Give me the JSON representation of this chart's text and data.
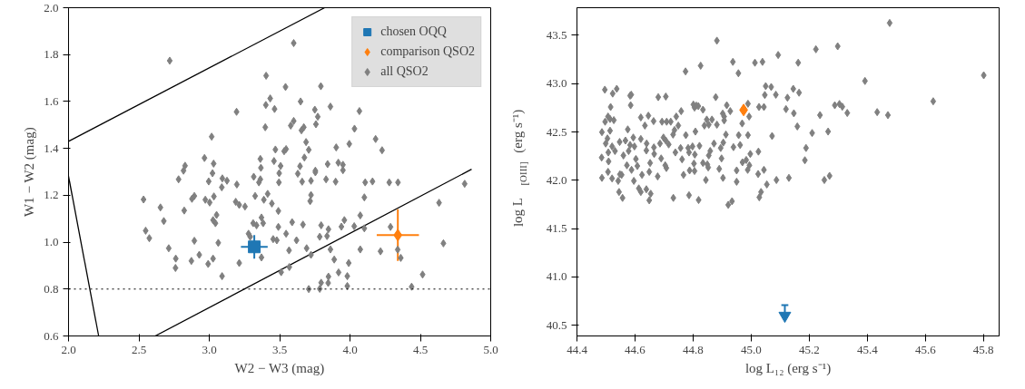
{
  "chart_data": [
    {
      "type": "scatter",
      "xlabel": "W2 − W3 (mag)",
      "ylabel": "W1 − W2 (mag)",
      "xlim": [
        2.0,
        5.0
      ],
      "ylim": [
        0.6,
        2.0
      ],
      "xticks": [
        {
          "value": 2,
          "label": "2.0"
        },
        2.5,
        {
          "value": 3,
          "label": "3.0"
        },
        3.5,
        {
          "value": 4,
          "label": "4.0"
        },
        4.5,
        {
          "value": 5,
          "label": "5.0"
        }
      ],
      "yticks": [
        0.6,
        0.8,
        {
          "value": 1,
          "label": "1.0"
        },
        1.2,
        1.4,
        1.6,
        1.8,
        {
          "value": 2,
          "label": "2.0"
        }
      ],
      "grid": false,
      "legend": "top right",
      "ref_lines": [
        {
          "axis": "y",
          "value": 0.8,
          "color": "#000000",
          "line_style": "dotted"
        }
      ],
      "series": [
        {
          "type": "line",
          "color": "#000000",
          "x": [
            2.0,
            3.82
          ],
          "values": [
            1.43,
            2.0
          ]
        },
        {
          "type": "line",
          "color": "#000000",
          "x": [
            2.616,
            4.864
          ],
          "values": [
            0.6,
            1.311
          ]
        },
        {
          "type": "line",
          "color": "#000000",
          "x": [
            2.0,
            2.214
          ],
          "values": [
            1.281,
            0.6
          ]
        },
        {
          "name": "chosen OQQ",
          "color": "#1f77b4",
          "marker": "square",
          "x": [
            3.32
          ],
          "values": [
            0.98
          ],
          "errors": [
            0.05
          ],
          "xerrors": [
            0.095
          ]
        },
        {
          "name": "comparison QSO2",
          "color": "#ff7f0e",
          "marker": "diamond",
          "x": [
            4.34
          ],
          "values": [
            1.03
          ],
          "errors": [
            0.11
          ],
          "xerrors": [
            0.15
          ]
        },
        {
          "name": "all QSO2",
          "color": "#808080",
          "marker": "diamond",
          "x": [
            2.719,
            3.6,
            3.404,
            3.542,
            3.793,
            3.433,
            3.402,
            3.464,
            3.649,
            3.75,
            3.861,
            4.067,
            3.194,
            3.771,
            3.6,
            3.579,
            3.758,
            3.398,
            3.655,
            3.672,
            4.032,
            3.017,
            4.182,
            3.688,
            3.995,
            3.902,
            4.228,
            3.47,
            3.532,
            3.546,
            3.707,
            2.966,
            3.363,
            3.676,
            2.828,
            3.031,
            3.46,
            3.507,
            3.841,
            3.917,
            3.95,
            2.817,
            3.367,
            3.645,
            3.754,
            3.023,
            3.497,
            3.95,
            2.782,
            3.093,
            3.316,
            3.629,
            3.754,
            2.996,
            3.126,
            3.196,
            3.363,
            3.353,
            3.495,
            3.66,
            3.723,
            3.83,
            3.898,
            4.108,
            4.16,
            4.279,
            4.341,
            4.815,
            3.089,
            2.533,
            2.653,
            2.894,
            2.877,
            2.972,
            3.003,
            3.033,
            3.326,
            3.415,
            3.388,
            3.188,
            3.213,
            3.254,
            3.445,
            3.723,
            3.717,
            4.102,
            4.633,
            2.822,
            3.491,
            3.052,
            2.677,
            3.027,
            3.044,
            3.371,
            3.312,
            3.336,
            3.383,
            3.589,
            3.666,
            3.96,
            4.073,
            2.548,
            2.574,
            3.491,
            4.03,
            4.102,
            3.939,
            3.795,
            3.847,
            4.288,
            3.279,
            3.291,
            3.546,
            3.454,
            3.48,
            3.62,
            3.785,
            3.837,
            2.894,
            3.064,
            2.712,
            3.567,
            3.692,
            3.861,
            4.073,
            4.217,
            4.339,
            4.664,
            2.929,
            3.723,
            2.762,
            2.873,
            3.027,
            3.371,
            3.888,
            4.361,
            2.992,
            3.213,
            3.991,
            2.76,
            3.569,
            3.511,
            3.919,
            3.091,
            3.847,
            3.981,
            4.516,
            3.795,
            3.845,
            3.981,
            4.438,
            3.707,
            3.785
          ],
          "values": [
            1.774,
            1.849,
            1.71,
            1.662,
            1.665,
            1.613,
            1.585,
            1.568,
            1.6,
            1.565,
            1.578,
            1.559,
            1.556,
            1.535,
            1.517,
            1.497,
            1.503,
            1.49,
            1.477,
            1.49,
            1.484,
            1.45,
            1.44,
            1.427,
            1.419,
            1.404,
            1.392,
            1.395,
            1.388,
            1.397,
            1.394,
            1.359,
            1.355,
            1.361,
            1.326,
            1.335,
            1.346,
            1.325,
            1.333,
            1.339,
            1.33,
            1.305,
            1.317,
            1.324,
            1.305,
            1.294,
            1.294,
            1.307,
            1.268,
            1.272,
            1.279,
            1.292,
            1.298,
            1.259,
            1.262,
            1.246,
            1.268,
            1.255,
            1.255,
            1.258,
            1.262,
            1.268,
            1.258,
            1.255,
            1.259,
            1.255,
            1.255,
            1.249,
            1.234,
            1.182,
            1.148,
            1.197,
            1.185,
            1.181,
            1.169,
            1.195,
            1.197,
            1.206,
            1.181,
            1.172,
            1.159,
            1.152,
            1.165,
            1.201,
            1.175,
            1.191,
            1.168,
            1.135,
            1.133,
            1.116,
            1.09,
            1.094,
            1.081,
            1.105,
            1.081,
            1.072,
            1.081,
            1.085,
            1.075,
            1.094,
            1.114,
            1.049,
            1.017,
            1.065,
            1.068,
            1.059,
            1.066,
            1.072,
            1.055,
            1.065,
            1.036,
            1.023,
            1.036,
            1.013,
            1.008,
            1.008,
            1.023,
            1.026,
            1.006,
            0.997,
            0.974,
            0.965,
            0.974,
            0.969,
            0.969,
            0.961,
            0.968,
            0.995,
            0.946,
            0.946,
            0.93,
            0.92,
            0.93,
            0.935,
            0.926,
            0.933,
            0.907,
            0.911,
            0.911,
            0.89,
            0.894,
            0.872,
            0.871,
            0.855,
            0.853,
            0.855,
            0.862,
            0.827,
            0.826,
            0.813,
            0.81,
            0.8,
            0.801
          ]
        }
      ]
    },
    {
      "type": "scatter",
      "xlabel": "log L₁₂ (erg s⁻¹)",
      "ylabel": "log L$_{[OIII]}$ (erg s⁻¹)",
      "xlim": [
        44.4,
        45.854
      ],
      "ylim": [
        40.39,
        43.785
      ],
      "xticks": [
        44.4,
        44.6,
        44.8,
        {
          "value": 45,
          "label": "45.0"
        },
        45.2,
        45.4,
        45.6,
        45.8
      ],
      "yticks": [
        40.5,
        {
          "value": 41,
          "label": "41.0"
        },
        41.5,
        {
          "value": 42,
          "label": "42.0"
        },
        42.5,
        {
          "value": 43,
          "label": "43.0"
        },
        43.5
      ],
      "grid": false,
      "series": [
        {
          "color": "#808080",
          "marker": "diamond",
          "x": [
            45.477,
            44.882,
            45.801,
            45.223,
            45.298,
            45.093,
            44.937,
            45.013,
            45.039,
            45.162,
            44.826,
            44.774,
            44.956,
            45.392,
            45.05,
            45.069,
            45.145,
            45.165,
            45.047,
            45.085,
            45.125,
            45.627,
            44.496,
            44.523,
            44.537,
            44.583,
            44.587,
            44.585,
            44.68,
            44.706,
            44.878,
            44.516,
            44.801,
            44.811,
            44.818,
            44.805,
            44.834,
            44.916,
            44.989,
            45.027,
            45.044,
            45.12,
            45.147,
            45.288,
            45.304,
            45.314,
            45.331,
            45.237,
            45.434,
            45.471,
            44.759,
            44.742,
            44.62,
            44.646,
            44.507,
            44.514,
            44.527,
            44.497,
            44.664,
            44.693,
            44.709,
            44.723,
            44.634,
            44.749,
            44.847,
            44.865,
            44.854,
            44.839,
            44.882,
            44.902,
            44.907,
            44.928,
            44.907,
            44.993,
            44.969,
            45.159,
            44.486,
            44.514,
            44.575,
            44.736,
            44.731,
            44.775,
            44.808,
            44.913,
            44.957,
            44.989,
            45.072,
            45.21,
            45.265,
            44.505,
            44.594,
            44.62,
            44.698,
            44.706,
            44.686,
            44.499,
            44.547,
            44.567,
            44.521,
            44.583,
            44.598,
            44.64,
            44.665,
            44.716,
            44.757,
            44.783,
            44.798,
            44.822,
            44.872,
            44.904,
            44.895,
            44.939,
            44.962,
            45.189,
            44.485,
            44.508,
            44.531,
            44.56,
            44.578,
            44.603,
            44.639,
            44.666,
            44.69,
            44.739,
            44.762,
            44.786,
            44.806,
            44.854,
            44.859,
            44.898,
            44.997,
            45.025,
            45.185,
            44.509,
            44.572,
            44.608,
            44.652,
            44.704,
            44.708,
            44.803,
            44.834,
            44.849,
            44.852,
            44.97,
            44.983,
            44.994,
            44.507,
            44.548,
            44.588,
            44.624,
            44.649,
            44.767,
            44.788,
            44.805,
            44.89,
            44.95,
            44.988,
            45.024,
            45.044,
            44.486,
            44.521,
            44.542,
            44.554,
            44.596,
            44.678,
            44.844,
            44.903,
            44.95,
            45.054,
            45.087,
            45.13,
            45.252,
            45.27,
            44.545,
            44.557,
            44.613,
            44.62,
            44.639,
            44.654,
            44.649,
            44.732,
            44.786,
            44.819,
            44.921,
            44.934,
            45.034,
            45.028
          ],
          "values": [
            43.627,
            43.444,
            43.086,
            43.355,
            43.386,
            43.296,
            43.225,
            43.216,
            43.225,
            43.216,
            43.185,
            43.126,
            43.107,
            43.027,
            42.974,
            42.965,
            42.946,
            42.906,
            42.882,
            42.885,
            42.854,
            42.817,
            42.937,
            42.897,
            42.946,
            42.875,
            42.885,
            42.776,
            42.86,
            42.866,
            42.86,
            42.758,
            42.783,
            42.773,
            42.767,
            42.752,
            42.73,
            42.776,
            42.792,
            42.758,
            42.758,
            42.736,
            42.693,
            42.776,
            42.789,
            42.761,
            42.696,
            42.674,
            42.705,
            42.674,
            42.715,
            42.659,
            42.65,
            42.668,
            42.659,
            42.634,
            42.622,
            42.606,
            42.612,
            42.606,
            42.606,
            42.606,
            42.566,
            42.566,
            42.628,
            42.628,
            42.575,
            42.566,
            42.575,
            42.69,
            42.659,
            42.715,
            42.619,
            42.659,
            42.588,
            42.557,
            42.498,
            42.513,
            42.526,
            42.52,
            42.473,
            42.467,
            42.504,
            42.473,
            42.467,
            42.467,
            42.458,
            42.489,
            42.504,
            42.433,
            42.442,
            42.427,
            42.442,
            42.411,
            42.38,
            42.38,
            42.396,
            42.411,
            42.35,
            42.365,
            42.35,
            42.38,
            42.34,
            42.371,
            42.334,
            42.334,
            42.35,
            42.356,
            42.38,
            42.39,
            42.334,
            42.343,
            42.365,
            42.334,
            42.235,
            42.288,
            42.303,
            42.257,
            42.303,
            42.22,
            42.309,
            42.272,
            42.226,
            42.288,
            42.217,
            42.288,
            42.266,
            42.257,
            42.303,
            42.226,
            42.272,
            42.297,
            42.207,
            42.195,
            42.155,
            42.148,
            42.179,
            42.155,
            42.127,
            42.173,
            42.179,
            42.164,
            42.133,
            42.186,
            42.21,
            42.155,
            42.087,
            42.062,
            42.108,
            42.056,
            42.087,
            42.056,
            42.102,
            42.096,
            42.118,
            42.102,
            42.108,
            42.065,
            42.108,
            42.025,
            42.019,
            41.994,
            42.056,
            41.994,
            42.04,
            42.003,
            42.025,
            41.985,
            41.957,
            42.003,
            42.025,
            42.003,
            42.046,
            41.879,
            41.818,
            41.916,
            41.879,
            41.907,
            41.861,
            41.793,
            41.818,
            41.845,
            41.796,
            41.746,
            41.783,
            41.879,
            41.824
          ]
        },
        {
          "color": "#ff7f0e",
          "marker": "diamond",
          "x": [
            44.974
          ],
          "values": [
            42.727
          ]
        },
        {
          "color": "#1f77b4",
          "marker": "triangle_down",
          "x": [
            45.116
          ],
          "values": [
            40.6
          ],
          "errors": [
            [
              40.6,
              40.71
            ]
          ]
        }
      ]
    }
  ]
}
